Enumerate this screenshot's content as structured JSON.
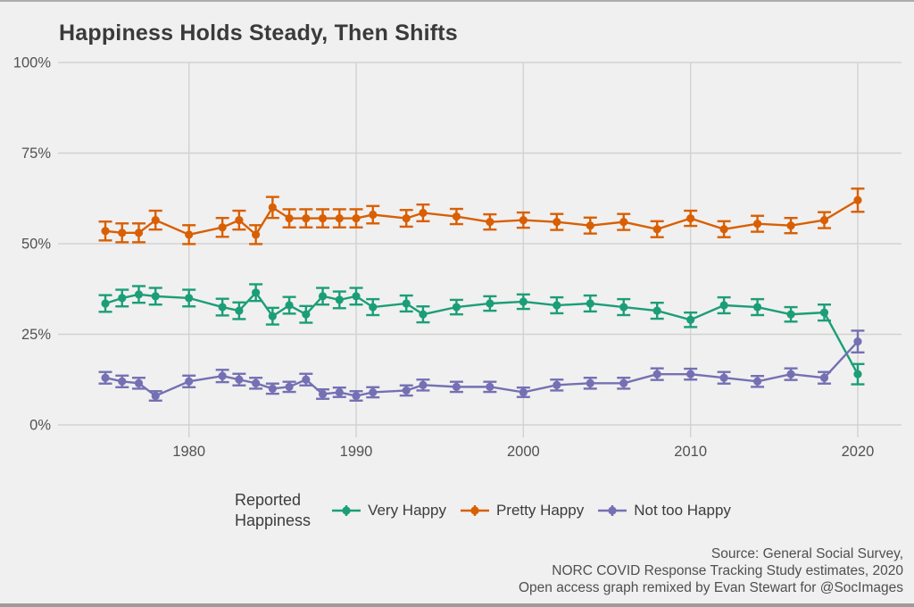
{
  "page": {
    "background_color": "#F0F0F0",
    "frame_color": "#A6A6A6"
  },
  "title": "Happiness Holds Steady, Then Shifts",
  "legend": {
    "title_line1": "Reported",
    "title_line2": "Happiness",
    "items": [
      {
        "label": "Very Happy",
        "color": "#1B9E77"
      },
      {
        "label": "Pretty Happy",
        "color": "#D95F02"
      },
      {
        "label": "Not too Happy",
        "color": "#7570B3"
      }
    ]
  },
  "caption": {
    "line1": "Source: General Social Survey,",
    "line2": "NORC COVID Response Tracking Study estimates, 2020",
    "line3": "Open access graph remixed by Evan Stewart for @SocImages"
  },
  "chart_data": {
    "type": "line",
    "title": "Happiness Holds Steady, Then Shifts",
    "xlabel": "",
    "ylabel": "",
    "ylim": [
      0,
      100
    ],
    "xlim": [
      1974,
      2021
    ],
    "grid": true,
    "legend_position": "bottom",
    "legend_title": "Reported Happiness",
    "errorbars": true,
    "x": [
      1975,
      1976,
      1977,
      1978,
      1980,
      1982,
      1983,
      1984,
      1985,
      1986,
      1987,
      1988,
      1989,
      1990,
      1991,
      1993,
      1994,
      1996,
      1998,
      2000,
      2002,
      2004,
      2006,
      2008,
      2010,
      2012,
      2014,
      2016,
      2018,
      2020
    ],
    "x_ticks": [
      {
        "value": 1980,
        "label": "1980"
      },
      {
        "value": 1990,
        "label": "1990"
      },
      {
        "value": 2000,
        "label": "2000"
      },
      {
        "value": 2010,
        "label": "2010"
      },
      {
        "value": 2020,
        "label": "2020"
      }
    ],
    "y_ticks": [
      {
        "value": 0,
        "label": "0%"
      },
      {
        "value": 25,
        "label": "25%"
      },
      {
        "value": 50,
        "label": "50%"
      },
      {
        "value": 75,
        "label": "75%"
      },
      {
        "value": 100,
        "label": "100%"
      }
    ],
    "layout": {
      "grid_color": "#D2D2D2",
      "tick_label_color": "#525252"
    },
    "series": [
      {
        "name": "Very Happy",
        "color": "#1B9E77",
        "values": [
          33.5,
          35,
          36,
          35.5,
          35,
          32.5,
          31.5,
          36.5,
          30,
          33,
          30.5,
          35.5,
          34.5,
          35.5,
          32.5,
          33.5,
          30.5,
          32.5,
          33.5,
          34,
          33,
          33.5,
          32.5,
          31.5,
          29,
          33,
          32.5,
          30.5,
          31,
          14
        ],
        "ci": [
          2.3,
          2.3,
          2.3,
          2.3,
          2.3,
          2.3,
          2.3,
          2.3,
          2.3,
          2.3,
          2.3,
          2.3,
          2.3,
          2.3,
          2.2,
          2.2,
          2.2,
          2.0,
          2.0,
          2.0,
          2.2,
          2.2,
          2.2,
          2.2,
          2.0,
          2.2,
          2.2,
          2.0,
          2.2,
          2.8
        ]
      },
      {
        "name": "Pretty Happy",
        "color": "#D95F02",
        "values": [
          53.5,
          53,
          53,
          56.5,
          52.5,
          54.5,
          56.5,
          52.5,
          60,
          57,
          57,
          57,
          57,
          57,
          58,
          57,
          58.5,
          57.5,
          56,
          56.5,
          56,
          55,
          56,
          54,
          57,
          54,
          55.5,
          55,
          56.5,
          62
        ],
        "ci": [
          2.6,
          2.6,
          2.6,
          2.6,
          2.6,
          2.6,
          2.6,
          2.6,
          2.9,
          2.5,
          2.5,
          2.5,
          2.5,
          2.5,
          2.4,
          2.3,
          2.3,
          2.1,
          2.1,
          2.1,
          2.2,
          2.2,
          2.2,
          2.2,
          2.1,
          2.2,
          2.2,
          2.1,
          2.2,
          3.2
        ]
      },
      {
        "name": "Not too Happy",
        "color": "#7570B3",
        "values": [
          13,
          12,
          11.5,
          8,
          12,
          13.5,
          12.5,
          11.5,
          10,
          10.5,
          12.5,
          8.5,
          9,
          8,
          9,
          9.5,
          11,
          10.5,
          10.5,
          9,
          11,
          11.5,
          11.5,
          14,
          14,
          13,
          12,
          14,
          13,
          23
        ],
        "ci": [
          1.6,
          1.6,
          1.5,
          1.3,
          1.6,
          1.7,
          1.6,
          1.5,
          1.4,
          1.4,
          1.6,
          1.3,
          1.3,
          1.3,
          1.4,
          1.4,
          1.5,
          1.4,
          1.4,
          1.3,
          1.5,
          1.5,
          1.5,
          1.6,
          1.5,
          1.6,
          1.5,
          1.6,
          1.6,
          3.0
        ]
      }
    ]
  }
}
